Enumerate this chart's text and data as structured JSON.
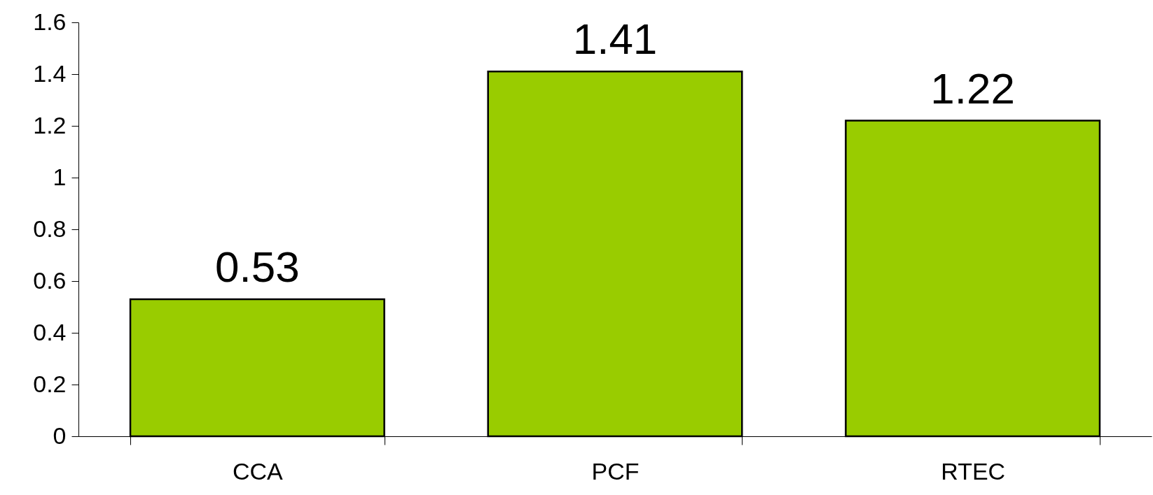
{
  "chart_data": {
    "type": "bar",
    "categories": [
      "CCA",
      "PCF",
      "RTEC"
    ],
    "values": [
      0.53,
      1.41,
      1.22
    ],
    "color": "#99cc00",
    "ylim": [
      0,
      1.6
    ],
    "yticks": [
      0,
      0.2,
      0.4,
      0.6,
      0.8,
      1,
      1.2,
      1.4,
      1.6
    ],
    "data_labels": true
  }
}
